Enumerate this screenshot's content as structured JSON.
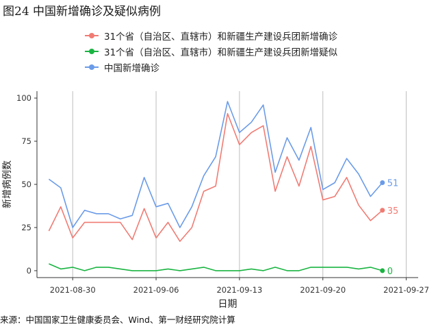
{
  "figure_title": "图24 中国新增确诊及疑似病例",
  "source": "来源：中国国家卫生健康委员会、Wind、第一财经研究院计算",
  "legend": [
    {
      "label": "31个省（自治区、直辖市）和新疆生产建设兵团新增确诊",
      "color": "#F07B73"
    },
    {
      "label": "31个省（自治区、直辖市）和新疆生产建设兵团新增疑似",
      "color": "#19B441"
    },
    {
      "label": "中国新增确诊",
      "color": "#6A9BE8"
    }
  ],
  "chart_data": {
    "type": "line",
    "xlabel": "日期",
    "ylabel": "新增病例数",
    "x_start": "2021-08-28",
    "x_ticks": [
      "2021-08-30",
      "2021-09-06",
      "2021-09-13",
      "2021-09-20",
      "2021-09-27"
    ],
    "y_ticks": [
      0,
      25,
      50,
      75,
      100
    ],
    "xlim": [
      "2021-08-27",
      "2021-09-28"
    ],
    "ylim": [
      -4,
      104
    ],
    "grid": "vertical-major",
    "legend_position": "top",
    "series": [
      {
        "name": "31个省（自治区、直辖市）和新疆生产建设兵团新增确诊",
        "color": "#F07B73",
        "values": [
          23,
          37,
          19,
          28,
          28,
          28,
          28,
          18,
          36,
          19,
          28,
          17,
          25,
          46,
          49,
          91,
          73,
          80,
          84,
          46,
          66,
          49,
          72,
          41,
          43,
          54,
          38,
          29,
          35
        ],
        "end_label": "35"
      },
      {
        "name": "31个省（自治区、直辖市）和新疆生产建设兵团新增疑似",
        "color": "#19B441",
        "values": [
          4,
          1,
          2,
          0,
          2,
          2,
          1,
          0,
          0,
          0,
          1,
          0,
          1,
          2,
          0,
          0,
          0,
          1,
          0,
          2,
          0,
          0,
          2,
          2,
          2,
          2,
          1,
          2,
          0
        ],
        "end_label": "0"
      },
      {
        "name": "中国新增确诊",
        "color": "#6A9BE8",
        "values": [
          53,
          48,
          25,
          35,
          33,
          33,
          30,
          32,
          54,
          37,
          39,
          25,
          37,
          55,
          66,
          98,
          80,
          86,
          96,
          57,
          77,
          64,
          83,
          47,
          51,
          65,
          56,
          43,
          51
        ],
        "end_label": "51"
      }
    ]
  }
}
